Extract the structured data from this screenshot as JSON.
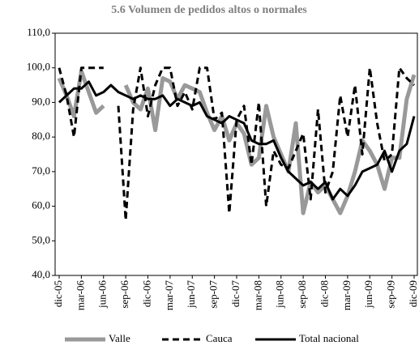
{
  "chart_data": {
    "type": "line",
    "title": "5.6 Volumen de pedidos altos o normales",
    "categories": [
      "dic-05",
      null,
      null,
      "mar-06",
      null,
      null,
      "jun-06",
      null,
      null,
      "sep-06",
      null,
      null,
      "dic-06",
      null,
      null,
      "mar-07",
      null,
      null,
      "jun-07",
      null,
      null,
      "sep-07",
      null,
      null,
      "dic-07",
      null,
      null,
      "mar-08",
      null,
      null,
      "jun-08",
      null,
      null,
      "sep-08",
      null,
      null,
      "dic-08",
      null,
      null,
      "mar-09",
      null,
      null,
      "jun-09",
      null,
      null,
      "sep-09",
      null,
      null,
      "dic-09"
    ],
    "series": [
      {
        "name": "Valle",
        "color": "#999999",
        "values": [
          97,
          92,
          86,
          99,
          93,
          87,
          89,
          null,
          null,
          95,
          90,
          88,
          94,
          82,
          97,
          96,
          91,
          95,
          94,
          93,
          87,
          82,
          86,
          79,
          84,
          81,
          72,
          74,
          89,
          80,
          75,
          70,
          84,
          58,
          67,
          64,
          66,
          62,
          58,
          63,
          70,
          79,
          76,
          72,
          65,
          74,
          74,
          91,
          98
        ]
      },
      {
        "name": "Cauca",
        "color": "#000000",
        "values": [
          100,
          92,
          80,
          100,
          100,
          100,
          100,
          null,
          89,
          56,
          88,
          100,
          86,
          95,
          100,
          100,
          89,
          93,
          88,
          100,
          100,
          85,
          87,
          58,
          85,
          89,
          72,
          90,
          60,
          76,
          72,
          71,
          76,
          81,
          62,
          88,
          64,
          70,
          92,
          80,
          95,
          75,
          100,
          84,
          73,
          75,
          100,
          97,
          95
        ]
      },
      {
        "name": "Total nacional",
        "color": "#000000",
        "values": [
          90,
          92,
          94,
          94,
          96,
          92,
          93,
          95,
          93,
          92,
          91,
          92,
          91,
          91,
          92,
          89,
          91,
          90,
          89,
          90,
          86,
          85,
          84,
          86,
          85,
          84,
          79,
          78,
          78,
          79,
          74,
          70,
          68,
          66,
          67,
          65,
          67,
          62,
          65,
          63,
          66,
          70,
          71,
          72,
          76,
          70,
          76,
          78,
          86
        ]
      }
    ],
    "ylim": [
      40,
      110
    ],
    "yticks": [
      {
        "value": 40,
        "label": "40,0"
      },
      {
        "value": 50,
        "label": "50,0"
      },
      {
        "value": 60,
        "label": "60,0"
      },
      {
        "value": 70,
        "label": "70,0"
      },
      {
        "value": 80,
        "label": "80,0"
      },
      {
        "value": 90,
        "label": "90,0"
      },
      {
        "value": 100,
        "label": "100,0"
      },
      {
        "value": 110,
        "label": "110,0"
      }
    ],
    "grid": false,
    "legend": "bottom"
  }
}
